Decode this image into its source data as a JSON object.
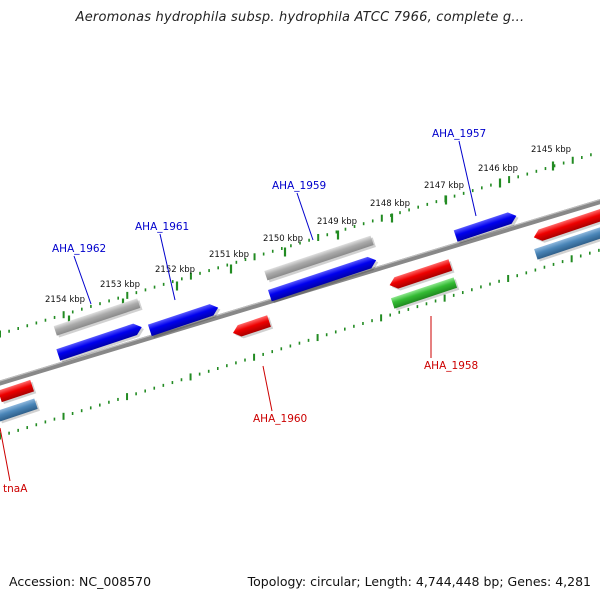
{
  "title": "Aeromonas hydrophila subsp. hydrophila ATCC 7966, complete g...",
  "footer": {
    "accession": "Accession: NC_008570",
    "summary": "Topology: circular; Length: 4,744,448 bp; Genes: 4,281"
  },
  "colors": {
    "forward_cds": "#0000ee",
    "reverse_cds": "#ee0000",
    "forward_gene": "#aaaaaa",
    "reverse_rna": "#33bb33",
    "reverse_gene": "#4a86b8",
    "forward_label": "#0000cc",
    "reverse_label": "#cc0000",
    "backbone": "#888888",
    "ruler_ticks": "#228b22"
  },
  "ruler": {
    "unit": "kbp",
    "labels": [
      "2145 kbp",
      "2146 kbp",
      "2147 kbp",
      "2148 kbp",
      "2149 kbp",
      "2150 kbp",
      "2151 kbp",
      "2152 kbp",
      "2153 kbp",
      "2154 kbp"
    ]
  },
  "gene_labels": [
    {
      "text": "AHA_1957",
      "strand": "forward"
    },
    {
      "text": "AHA_1959",
      "strand": "forward"
    },
    {
      "text": "AHA_1961",
      "strand": "forward"
    },
    {
      "text": "AHA_1962",
      "strand": "forward"
    },
    {
      "text": "AHA_1958",
      "strand": "reverse"
    },
    {
      "text": "AHA_1960",
      "strand": "reverse"
    },
    {
      "text": "tnaA",
      "strand": "reverse"
    }
  ]
}
